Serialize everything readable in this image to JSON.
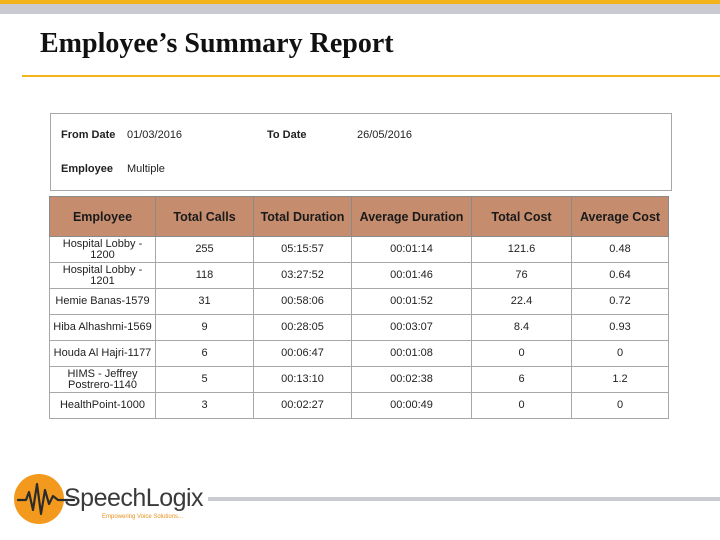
{
  "slide": {
    "title": "Employee’s Summary Report"
  },
  "filters": {
    "from_date_label": "From Date",
    "from_date_value": "01/03/2016",
    "to_date_label": "To Date",
    "to_date_value": "26/05/2016",
    "employee_label": "Employee",
    "employee_value": "Multiple"
  },
  "table": {
    "headers": [
      "Employee",
      "Total Calls",
      "Total Duration",
      "Average Duration",
      "Total Cost",
      "Average Cost"
    ],
    "rows": [
      [
        "Hospital Lobby - 1200",
        "255",
        "05:15:57",
        "00:01:14",
        "121.6",
        "0.48"
      ],
      [
        "Hospital Lobby - 1201",
        "118",
        "03:27:52",
        "00:01:46",
        "76",
        "0.64"
      ],
      [
        "Hemie Banas-1579",
        "31",
        "00:58:06",
        "00:01:52",
        "22.4",
        "0.72"
      ],
      [
        "Hiba Alhashmi-1569",
        "9",
        "00:28:05",
        "00:03:07",
        "8.4",
        "0.93"
      ],
      [
        "Houda Al Hajri-1177",
        "6",
        "00:06:47",
        "00:01:08",
        "0",
        "0"
      ],
      [
        "HIMS - Jeffrey Postrero-1140",
        "5",
        "00:13:10",
        "00:02:38",
        "6",
        "1.2"
      ],
      [
        "HealthPoint-1000",
        "3",
        "00:02:27",
        "00:00:49",
        "0",
        "0"
      ]
    ]
  },
  "brand": {
    "name": "SpeechLogix",
    "tagline": "Empowering Voice Solutions...",
    "accent_color": "#f2b31b",
    "header_color": "#c68c6e"
  }
}
